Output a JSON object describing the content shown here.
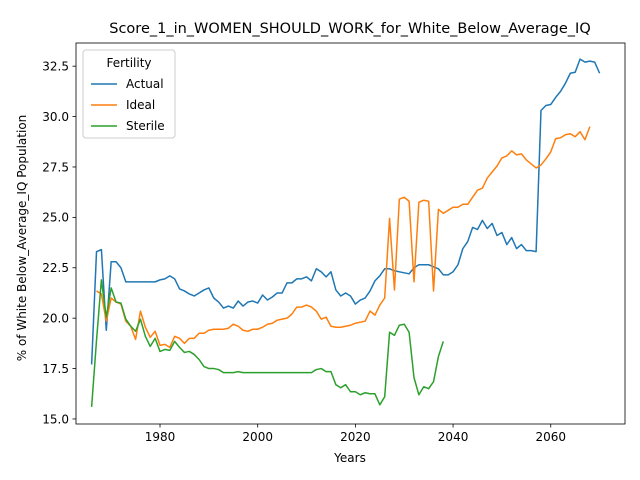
{
  "chart_data": {
    "type": "line",
    "title": "Score_1_in_WOMEN_SHOULD_WORK_for_White_Below_Average_IQ",
    "xlabel": "Years",
    "ylabel": "% of White Below_Average_IQ Population",
    "xlim": [
      1962.8,
      2075.2
    ],
    "ylim": [
      14.75,
      33.65
    ],
    "xticks": [
      1980,
      2000,
      2020,
      2040,
      2060
    ],
    "yticks": [
      15.0,
      17.5,
      20.0,
      22.5,
      25.0,
      27.5,
      30.0,
      32.5
    ],
    "grid": false,
    "legend": {
      "title": "Fertility",
      "position": "top-left"
    },
    "series": [
      {
        "name": "Actual",
        "color": "#1f77b4",
        "points": [
          [
            1966,
            17.7
          ],
          [
            1967,
            23.3
          ],
          [
            1968,
            23.4
          ],
          [
            1969,
            19.4
          ],
          [
            1970,
            22.8
          ],
          [
            1971,
            22.8
          ],
          [
            1972,
            22.5
          ],
          [
            1973,
            21.8
          ],
          [
            1974,
            21.8
          ],
          [
            1975,
            21.8
          ],
          [
            1976,
            21.8
          ],
          [
            1977,
            21.8
          ],
          [
            1978,
            21.8
          ],
          [
            1979,
            21.8
          ],
          [
            1980,
            21.9
          ],
          [
            1981,
            21.95
          ],
          [
            1982,
            22.1
          ],
          [
            1983,
            21.95
          ],
          [
            1984,
            21.45
          ],
          [
            1985,
            21.35
          ],
          [
            1986,
            21.2
          ],
          [
            1987,
            21.1
          ],
          [
            1988,
            21.25
          ],
          [
            1989,
            21.4
          ],
          [
            1990,
            21.5
          ],
          [
            1991,
            21.0
          ],
          [
            1992,
            20.8
          ],
          [
            1993,
            20.5
          ],
          [
            1994,
            20.6
          ],
          [
            1995,
            20.5
          ],
          [
            1996,
            20.85
          ],
          [
            1997,
            20.6
          ],
          [
            1998,
            20.8
          ],
          [
            1999,
            20.85
          ],
          [
            2000,
            20.75
          ],
          [
            2001,
            21.15
          ],
          [
            2002,
            20.9
          ],
          [
            2003,
            21.05
          ],
          [
            2004,
            21.25
          ],
          [
            2005,
            21.25
          ],
          [
            2006,
            21.75
          ],
          [
            2007,
            21.75
          ],
          [
            2008,
            21.95
          ],
          [
            2009,
            21.95
          ],
          [
            2010,
            22.05
          ],
          [
            2011,
            21.85
          ],
          [
            2012,
            22.45
          ],
          [
            2013,
            22.3
          ],
          [
            2014,
            22.05
          ],
          [
            2015,
            22.3
          ],
          [
            2016,
            21.4
          ],
          [
            2017,
            21.1
          ],
          [
            2018,
            21.25
          ],
          [
            2019,
            21.1
          ],
          [
            2020,
            20.7
          ],
          [
            2021,
            20.9
          ],
          [
            2022,
            21.0
          ],
          [
            2023,
            21.35
          ],
          [
            2024,
            21.85
          ],
          [
            2025,
            22.1
          ],
          [
            2026,
            22.45
          ],
          [
            2027,
            22.45
          ],
          [
            2028,
            22.35
          ],
          [
            2029,
            22.3
          ],
          [
            2030,
            22.25
          ],
          [
            2031,
            22.2
          ],
          [
            2032,
            22.5
          ],
          [
            2033,
            22.65
          ],
          [
            2034,
            22.65
          ],
          [
            2035,
            22.65
          ],
          [
            2036,
            22.55
          ],
          [
            2037,
            22.45
          ],
          [
            2038,
            22.15
          ],
          [
            2039,
            22.15
          ],
          [
            2040,
            22.3
          ],
          [
            2041,
            22.65
          ],
          [
            2042,
            23.45
          ],
          [
            2043,
            23.8
          ],
          [
            2044,
            24.5
          ],
          [
            2045,
            24.4
          ],
          [
            2046,
            24.85
          ],
          [
            2047,
            24.45
          ],
          [
            2048,
            24.7
          ],
          [
            2049,
            24.1
          ],
          [
            2050,
            24.25
          ],
          [
            2051,
            23.65
          ],
          [
            2052,
            24.0
          ],
          [
            2053,
            23.45
          ],
          [
            2054,
            23.65
          ],
          [
            2055,
            23.35
          ],
          [
            2056,
            23.35
          ],
          [
            2057,
            23.3
          ],
          [
            2058,
            30.3
          ],
          [
            2059,
            30.55
          ],
          [
            2060,
            30.6
          ],
          [
            2061,
            30.95
          ],
          [
            2062,
            31.25
          ],
          [
            2063,
            31.65
          ],
          [
            2064,
            32.15
          ],
          [
            2065,
            32.2
          ],
          [
            2066,
            32.85
          ],
          [
            2067,
            32.7
          ],
          [
            2068,
            32.75
          ],
          [
            2069,
            32.7
          ],
          [
            2070,
            32.15
          ]
        ]
      },
      {
        "name": "Ideal",
        "color": "#ff7f0e",
        "points": [
          [
            1967,
            21.35
          ],
          [
            1968,
            21.2
          ],
          [
            1969,
            19.85
          ],
          [
            1970,
            21.0
          ],
          [
            1971,
            20.8
          ],
          [
            1972,
            20.7
          ],
          [
            1973,
            19.85
          ],
          [
            1974,
            19.6
          ],
          [
            1975,
            18.95
          ],
          [
            1976,
            20.35
          ],
          [
            1977,
            19.55
          ],
          [
            1978,
            19.05
          ],
          [
            1979,
            19.35
          ],
          [
            1980,
            18.65
          ],
          [
            1981,
            18.7
          ],
          [
            1982,
            18.55
          ],
          [
            1983,
            19.1
          ],
          [
            1984,
            19.0
          ],
          [
            1985,
            18.75
          ],
          [
            1986,
            19.0
          ],
          [
            1987,
            19.0
          ],
          [
            1988,
            19.25
          ],
          [
            1989,
            19.25
          ],
          [
            1990,
            19.4
          ],
          [
            1991,
            19.45
          ],
          [
            1992,
            19.45
          ],
          [
            1993,
            19.45
          ],
          [
            1994,
            19.5
          ],
          [
            1995,
            19.7
          ],
          [
            1996,
            19.6
          ],
          [
            1997,
            19.4
          ],
          [
            1998,
            19.35
          ],
          [
            1999,
            19.45
          ],
          [
            2000,
            19.45
          ],
          [
            2001,
            19.55
          ],
          [
            2002,
            19.7
          ],
          [
            2003,
            19.75
          ],
          [
            2004,
            19.9
          ],
          [
            2005,
            19.95
          ],
          [
            2006,
            20.0
          ],
          [
            2007,
            20.2
          ],
          [
            2008,
            20.55
          ],
          [
            2009,
            20.55
          ],
          [
            2010,
            20.65
          ],
          [
            2011,
            20.55
          ],
          [
            2012,
            20.35
          ],
          [
            2013,
            19.95
          ],
          [
            2014,
            20.05
          ],
          [
            2015,
            19.6
          ],
          [
            2016,
            19.55
          ],
          [
            2017,
            19.55
          ],
          [
            2018,
            19.6
          ],
          [
            2019,
            19.65
          ],
          [
            2020,
            19.75
          ],
          [
            2021,
            19.8
          ],
          [
            2022,
            19.85
          ],
          [
            2023,
            20.35
          ],
          [
            2024,
            20.15
          ],
          [
            2025,
            20.65
          ],
          [
            2026,
            21.0
          ],
          [
            2027,
            24.95
          ],
          [
            2028,
            21.4
          ],
          [
            2029,
            25.9
          ],
          [
            2030,
            26.0
          ],
          [
            2031,
            25.8
          ],
          [
            2032,
            21.8
          ],
          [
            2033,
            25.75
          ],
          [
            2034,
            25.85
          ],
          [
            2035,
            25.8
          ],
          [
            2036,
            21.35
          ],
          [
            2037,
            25.4
          ],
          [
            2038,
            25.2
          ],
          [
            2039,
            25.35
          ],
          [
            2040,
            25.5
          ],
          [
            2041,
            25.5
          ],
          [
            2042,
            25.65
          ],
          [
            2043,
            25.65
          ],
          [
            2044,
            26.0
          ],
          [
            2045,
            26.35
          ],
          [
            2046,
            26.45
          ],
          [
            2047,
            26.95
          ],
          [
            2048,
            27.25
          ],
          [
            2049,
            27.55
          ],
          [
            2050,
            27.95
          ],
          [
            2051,
            28.05
          ],
          [
            2052,
            28.3
          ],
          [
            2053,
            28.1
          ],
          [
            2054,
            28.15
          ],
          [
            2055,
            27.85
          ],
          [
            2056,
            27.65
          ],
          [
            2057,
            27.45
          ],
          [
            2058,
            27.6
          ],
          [
            2059,
            27.9
          ],
          [
            2060,
            28.25
          ],
          [
            2061,
            28.9
          ],
          [
            2062,
            28.95
          ],
          [
            2063,
            29.1
          ],
          [
            2064,
            29.15
          ],
          [
            2065,
            29.0
          ],
          [
            2066,
            29.25
          ],
          [
            2067,
            28.85
          ],
          [
            2068,
            29.5
          ]
        ]
      },
      {
        "name": "Sterile",
        "color": "#2ca02c",
        "points": [
          [
            1966,
            15.6
          ],
          [
            1967,
            18.9
          ],
          [
            1968,
            21.9
          ],
          [
            1969,
            20.05
          ],
          [
            1970,
            21.5
          ],
          [
            1971,
            20.8
          ],
          [
            1972,
            20.75
          ],
          [
            1973,
            19.95
          ],
          [
            1974,
            19.6
          ],
          [
            1975,
            19.35
          ],
          [
            1976,
            19.95
          ],
          [
            1977,
            19.1
          ],
          [
            1978,
            18.6
          ],
          [
            1979,
            19.0
          ],
          [
            1980,
            18.35
          ],
          [
            1981,
            18.45
          ],
          [
            1982,
            18.4
          ],
          [
            1983,
            18.85
          ],
          [
            1984,
            18.55
          ],
          [
            1985,
            18.3
          ],
          [
            1986,
            18.35
          ],
          [
            1987,
            18.2
          ],
          [
            1988,
            17.95
          ],
          [
            1989,
            17.6
          ],
          [
            1990,
            17.5
          ],
          [
            1991,
            17.5
          ],
          [
            1992,
            17.45
          ],
          [
            1993,
            17.3
          ],
          [
            1994,
            17.3
          ],
          [
            1995,
            17.3
          ],
          [
            1996,
            17.35
          ],
          [
            1997,
            17.3
          ],
          [
            1998,
            17.3
          ],
          [
            1999,
            17.3
          ],
          [
            2000,
            17.3
          ],
          [
            2001,
            17.3
          ],
          [
            2002,
            17.3
          ],
          [
            2003,
            17.3
          ],
          [
            2004,
            17.3
          ],
          [
            2005,
            17.3
          ],
          [
            2006,
            17.3
          ],
          [
            2007,
            17.3
          ],
          [
            2008,
            17.3
          ],
          [
            2009,
            17.3
          ],
          [
            2010,
            17.3
          ],
          [
            2011,
            17.3
          ],
          [
            2012,
            17.45
          ],
          [
            2013,
            17.5
          ],
          [
            2014,
            17.35
          ],
          [
            2015,
            17.35
          ],
          [
            2016,
            16.7
          ],
          [
            2017,
            16.55
          ],
          [
            2018,
            16.7
          ],
          [
            2019,
            16.35
          ],
          [
            2020,
            16.35
          ],
          [
            2021,
            16.2
          ],
          [
            2022,
            16.3
          ],
          [
            2023,
            16.25
          ],
          [
            2024,
            16.25
          ],
          [
            2025,
            15.7
          ],
          [
            2026,
            16.1
          ],
          [
            2027,
            19.3
          ],
          [
            2028,
            19.15
          ],
          [
            2029,
            19.65
          ],
          [
            2030,
            19.7
          ],
          [
            2031,
            19.3
          ],
          [
            2032,
            17.05
          ],
          [
            2033,
            16.2
          ],
          [
            2034,
            16.6
          ],
          [
            2035,
            16.5
          ],
          [
            2036,
            16.85
          ],
          [
            2037,
            18.1
          ],
          [
            2038,
            18.85
          ]
        ]
      }
    ]
  }
}
